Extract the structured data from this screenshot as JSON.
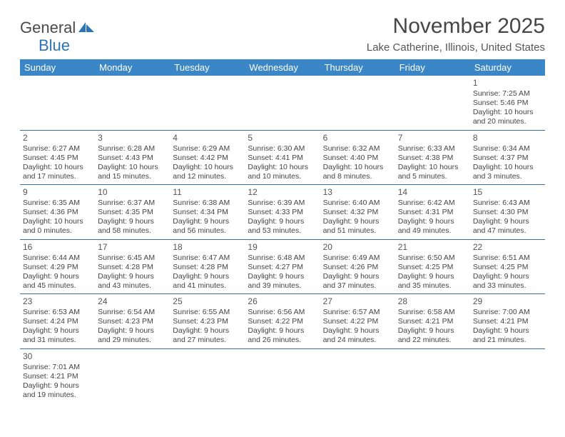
{
  "logo": {
    "text1": "General",
    "text2": "Blue"
  },
  "title": "November 2025",
  "location": "Lake Catherine, Illinois, United States",
  "header_bg": "#3b86c6",
  "header_fg": "#ffffff",
  "row_border": "#3b6fa3",
  "days": [
    "Sunday",
    "Monday",
    "Tuesday",
    "Wednesday",
    "Thursday",
    "Friday",
    "Saturday"
  ],
  "weeks": [
    [
      null,
      null,
      null,
      null,
      null,
      null,
      {
        "n": "1",
        "sr": "Sunrise: 7:25 AM",
        "ss": "Sunset: 5:46 PM",
        "dl": "Daylight: 10 hours and 20 minutes."
      }
    ],
    [
      {
        "n": "2",
        "sr": "Sunrise: 6:27 AM",
        "ss": "Sunset: 4:45 PM",
        "dl": "Daylight: 10 hours and 17 minutes."
      },
      {
        "n": "3",
        "sr": "Sunrise: 6:28 AM",
        "ss": "Sunset: 4:43 PM",
        "dl": "Daylight: 10 hours and 15 minutes."
      },
      {
        "n": "4",
        "sr": "Sunrise: 6:29 AM",
        "ss": "Sunset: 4:42 PM",
        "dl": "Daylight: 10 hours and 12 minutes."
      },
      {
        "n": "5",
        "sr": "Sunrise: 6:30 AM",
        "ss": "Sunset: 4:41 PM",
        "dl": "Daylight: 10 hours and 10 minutes."
      },
      {
        "n": "6",
        "sr": "Sunrise: 6:32 AM",
        "ss": "Sunset: 4:40 PM",
        "dl": "Daylight: 10 hours and 8 minutes."
      },
      {
        "n": "7",
        "sr": "Sunrise: 6:33 AM",
        "ss": "Sunset: 4:38 PM",
        "dl": "Daylight: 10 hours and 5 minutes."
      },
      {
        "n": "8",
        "sr": "Sunrise: 6:34 AM",
        "ss": "Sunset: 4:37 PM",
        "dl": "Daylight: 10 hours and 3 minutes."
      }
    ],
    [
      {
        "n": "9",
        "sr": "Sunrise: 6:35 AM",
        "ss": "Sunset: 4:36 PM",
        "dl": "Daylight: 10 hours and 0 minutes."
      },
      {
        "n": "10",
        "sr": "Sunrise: 6:37 AM",
        "ss": "Sunset: 4:35 PM",
        "dl": "Daylight: 9 hours and 58 minutes."
      },
      {
        "n": "11",
        "sr": "Sunrise: 6:38 AM",
        "ss": "Sunset: 4:34 PM",
        "dl": "Daylight: 9 hours and 56 minutes."
      },
      {
        "n": "12",
        "sr": "Sunrise: 6:39 AM",
        "ss": "Sunset: 4:33 PM",
        "dl": "Daylight: 9 hours and 53 minutes."
      },
      {
        "n": "13",
        "sr": "Sunrise: 6:40 AM",
        "ss": "Sunset: 4:32 PM",
        "dl": "Daylight: 9 hours and 51 minutes."
      },
      {
        "n": "14",
        "sr": "Sunrise: 6:42 AM",
        "ss": "Sunset: 4:31 PM",
        "dl": "Daylight: 9 hours and 49 minutes."
      },
      {
        "n": "15",
        "sr": "Sunrise: 6:43 AM",
        "ss": "Sunset: 4:30 PM",
        "dl": "Daylight: 9 hours and 47 minutes."
      }
    ],
    [
      {
        "n": "16",
        "sr": "Sunrise: 6:44 AM",
        "ss": "Sunset: 4:29 PM",
        "dl": "Daylight: 9 hours and 45 minutes."
      },
      {
        "n": "17",
        "sr": "Sunrise: 6:45 AM",
        "ss": "Sunset: 4:28 PM",
        "dl": "Daylight: 9 hours and 43 minutes."
      },
      {
        "n": "18",
        "sr": "Sunrise: 6:47 AM",
        "ss": "Sunset: 4:28 PM",
        "dl": "Daylight: 9 hours and 41 minutes."
      },
      {
        "n": "19",
        "sr": "Sunrise: 6:48 AM",
        "ss": "Sunset: 4:27 PM",
        "dl": "Daylight: 9 hours and 39 minutes."
      },
      {
        "n": "20",
        "sr": "Sunrise: 6:49 AM",
        "ss": "Sunset: 4:26 PM",
        "dl": "Daylight: 9 hours and 37 minutes."
      },
      {
        "n": "21",
        "sr": "Sunrise: 6:50 AM",
        "ss": "Sunset: 4:25 PM",
        "dl": "Daylight: 9 hours and 35 minutes."
      },
      {
        "n": "22",
        "sr": "Sunrise: 6:51 AM",
        "ss": "Sunset: 4:25 PM",
        "dl": "Daylight: 9 hours and 33 minutes."
      }
    ],
    [
      {
        "n": "23",
        "sr": "Sunrise: 6:53 AM",
        "ss": "Sunset: 4:24 PM",
        "dl": "Daylight: 9 hours and 31 minutes."
      },
      {
        "n": "24",
        "sr": "Sunrise: 6:54 AM",
        "ss": "Sunset: 4:23 PM",
        "dl": "Daylight: 9 hours and 29 minutes."
      },
      {
        "n": "25",
        "sr": "Sunrise: 6:55 AM",
        "ss": "Sunset: 4:23 PM",
        "dl": "Daylight: 9 hours and 27 minutes."
      },
      {
        "n": "26",
        "sr": "Sunrise: 6:56 AM",
        "ss": "Sunset: 4:22 PM",
        "dl": "Daylight: 9 hours and 26 minutes."
      },
      {
        "n": "27",
        "sr": "Sunrise: 6:57 AM",
        "ss": "Sunset: 4:22 PM",
        "dl": "Daylight: 9 hours and 24 minutes."
      },
      {
        "n": "28",
        "sr": "Sunrise: 6:58 AM",
        "ss": "Sunset: 4:21 PM",
        "dl": "Daylight: 9 hours and 22 minutes."
      },
      {
        "n": "29",
        "sr": "Sunrise: 7:00 AM",
        "ss": "Sunset: 4:21 PM",
        "dl": "Daylight: 9 hours and 21 minutes."
      }
    ],
    [
      {
        "n": "30",
        "sr": "Sunrise: 7:01 AM",
        "ss": "Sunset: 4:21 PM",
        "dl": "Daylight: 9 hours and 19 minutes."
      },
      null,
      null,
      null,
      null,
      null,
      null
    ]
  ]
}
